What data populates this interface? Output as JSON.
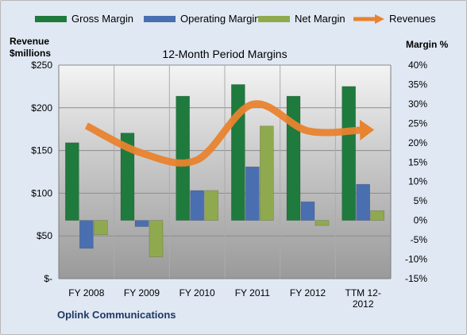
{
  "chart_data": {
    "type": "bar",
    "title": "12-Month Period Margins",
    "company": "Oplink Communications",
    "y_left_label_line1": "Revenue",
    "y_left_label_line2": "$millions",
    "y_right_label": "Margin %",
    "categories": [
      "FY 2008",
      "FY 2009",
      "FY 2010",
      "FY 2011",
      "FY 2012",
      "TTM 12-2012"
    ],
    "category_lines": [
      [
        "FY 2008"
      ],
      [
        "FY 2009"
      ],
      [
        "FY 2010"
      ],
      [
        "FY 2011"
      ],
      [
        "FY 2012"
      ],
      [
        "TTM 12-",
        "2012"
      ]
    ],
    "left_axis": {
      "min": 0,
      "max": 250,
      "step": 50,
      "tick_labels": [
        "$-",
        "$50",
        "$100",
        "$150",
        "$200",
        "$250"
      ]
    },
    "right_axis": {
      "min": -15,
      "max": 40,
      "step": 5,
      "tick_labels": [
        "-15%",
        "-10%",
        "-5%",
        "0%",
        "5%",
        "10%",
        "15%",
        "20%",
        "25%",
        "30%",
        "35%",
        "40%"
      ]
    },
    "series": [
      {
        "name": "Gross Margin",
        "type": "bar",
        "axis": "right",
        "color": "#1f7a3d",
        "values": [
          20,
          22.5,
          32,
          35,
          32,
          34.5
        ]
      },
      {
        "name": "Operating Margin",
        "type": "bar",
        "axis": "right",
        "color": "#4a6fb0",
        "values": [
          -7.2,
          -1.6,
          7.7,
          13.8,
          4.8,
          9.3
        ]
      },
      {
        "name": "Net Margin",
        "type": "bar",
        "axis": "right",
        "color": "#8faa4e",
        "values": [
          -3.7,
          -9.4,
          7.7,
          24.3,
          -1.3,
          2.5
        ]
      },
      {
        "name": "Revenues",
        "type": "line",
        "axis": "left",
        "color": "#e8832e",
        "values": [
          179,
          147,
          139,
          204,
          173,
          174
        ]
      }
    ],
    "grid": true,
    "legend_position": "top"
  }
}
